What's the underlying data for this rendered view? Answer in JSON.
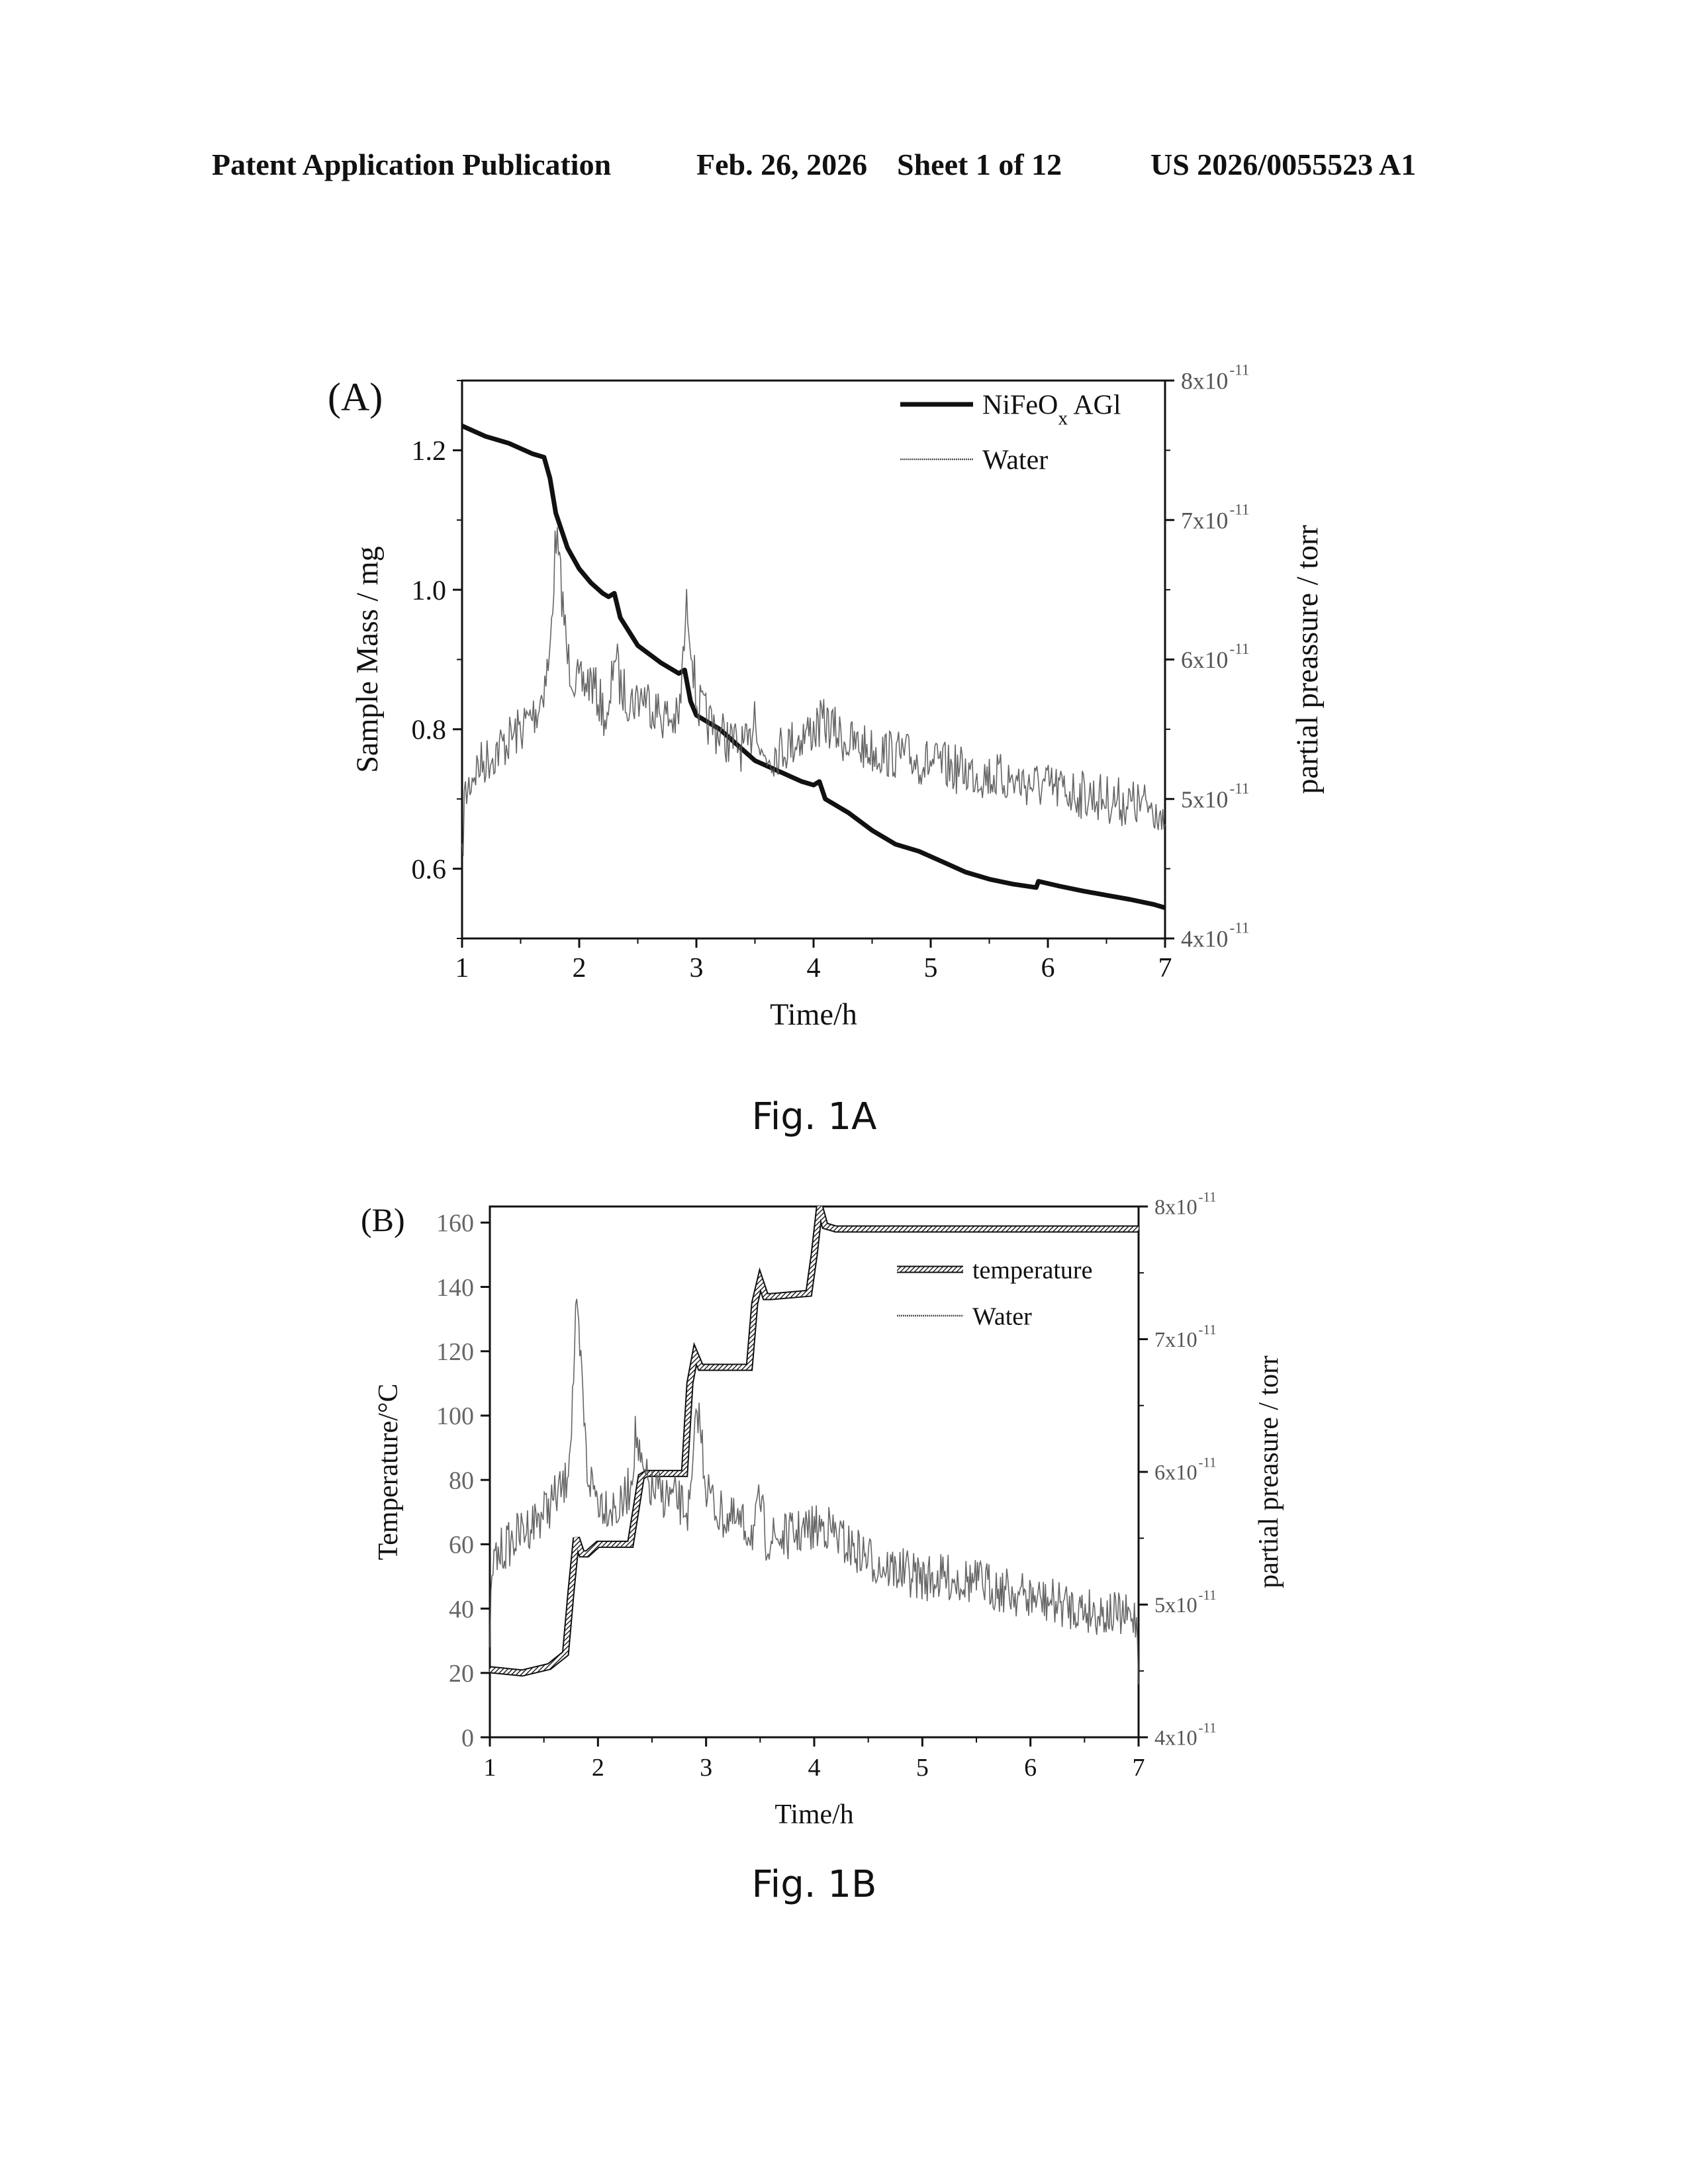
{
  "header": {
    "publication": "Patent Application Publication",
    "date": "Feb. 26, 2026",
    "sheet": "Sheet 1 of 12",
    "number": "US 2026/0055523 A1"
  },
  "figures": {
    "fig_a_caption": "Fig. 1A",
    "fig_b_caption": "Fig. 1B"
  },
  "colors": {
    "ink": "#111111",
    "noise": "#555555"
  },
  "chart_data": [
    {
      "type": "line",
      "panel_label": "(A)",
      "xlabel": "Time/h",
      "ylabel": "Sample Mass / mg",
      "y2label": "partial preassure / torr",
      "xlim": [
        1,
        7
      ],
      "ylim": [
        0.5,
        1.3
      ],
      "y2lim": [
        4e-11,
        8e-11
      ],
      "xticks": [
        "1",
        "2",
        "3",
        "4",
        "5",
        "6",
        "7"
      ],
      "yticks": [
        0.6,
        0.8,
        1.0,
        1.2
      ],
      "ytick_labels": [
        "0.6",
        "0.8",
        "1.0",
        "1.2"
      ],
      "y2ticks": [
        4e-11,
        5e-11,
        6e-11,
        7e-11,
        8e-11
      ],
      "y2tick_labels": [
        "4x10",
        "5x10",
        "6x10",
        "7x10",
        "8x10"
      ],
      "y2tick_exponent": "-11",
      "legend": {
        "position": "top-right",
        "entries": [
          {
            "label": "NiFeO",
            "subscript": "x",
            "suffix": " AGl",
            "style": "thick-solid"
          },
          {
            "label": "Water",
            "style": "noisy"
          }
        ]
      },
      "series": [
        {
          "name": "NiFeOx AGl",
          "axis": "left",
          "x": [
            1.0,
            1.2,
            1.4,
            1.6,
            1.7,
            1.75,
            1.8,
            1.9,
            2.0,
            2.1,
            2.2,
            2.25,
            2.3,
            2.35,
            2.5,
            2.7,
            2.85,
            2.9,
            2.95,
            3.0,
            3.2,
            3.4,
            3.5,
            3.7,
            3.9,
            4.0,
            4.05,
            4.1,
            4.3,
            4.5,
            4.7,
            4.9,
            5.1,
            5.3,
            5.5,
            5.7,
            5.9,
            5.92,
            6.1,
            6.3,
            6.5,
            6.7,
            6.9,
            7.0
          ],
          "y": [
            1.235,
            1.22,
            1.21,
            1.195,
            1.19,
            1.16,
            1.11,
            1.06,
            1.03,
            1.01,
            0.995,
            0.99,
            0.995,
            0.96,
            0.92,
            0.895,
            0.88,
            0.885,
            0.84,
            0.82,
            0.8,
            0.77,
            0.755,
            0.74,
            0.725,
            0.72,
            0.725,
            0.7,
            0.68,
            0.655,
            0.635,
            0.625,
            0.61,
            0.595,
            0.585,
            0.578,
            0.573,
            0.582,
            0.575,
            0.568,
            0.562,
            0.556,
            0.549,
            0.544
          ]
        },
        {
          "name": "Water",
          "axis": "right",
          "x": [
            1.0,
            1.02,
            1.1,
            1.3,
            1.5,
            1.65,
            1.75,
            1.8,
            1.85,
            1.9,
            2.0,
            2.1,
            2.2,
            2.25,
            2.3,
            2.35,
            2.45,
            2.55,
            2.7,
            2.85,
            2.92,
            2.95,
            3.0,
            3.1,
            3.3,
            3.45,
            3.5,
            3.55,
            3.7,
            3.9,
            4.1,
            4.3,
            4.5,
            4.8,
            5.0,
            5.3,
            5.6,
            5.9,
            6.2,
            6.5,
            6.8,
            6.95,
            7.0
          ],
          "y": [
            4.5e-11,
            5e-11,
            5.2e-11,
            5.35e-11,
            5.5e-11,
            5.65e-11,
            6e-11,
            6.9e-11,
            6.5e-11,
            6e-11,
            5.8e-11,
            5.85e-11,
            5.65e-11,
            5.5e-11,
            6.1e-11,
            5.8e-11,
            5.7e-11,
            5.75e-11,
            5.6e-11,
            5.55e-11,
            6.4e-11,
            6.2e-11,
            5.7e-11,
            5.55e-11,
            5.4e-11,
            5.35e-11,
            5.7e-11,
            5.3e-11,
            5.35e-11,
            5.45e-11,
            5.55e-11,
            5.4e-11,
            5.35e-11,
            5.3e-11,
            5.25e-11,
            5.2e-11,
            5.15e-11,
            5.1e-11,
            5.05e-11,
            5e-11,
            4.95e-11,
            4.95e-11,
            4.65e-11
          ]
        }
      ]
    },
    {
      "type": "line",
      "panel_label": "(B)",
      "xlabel": "Time/h",
      "ylabel": "Temperature/°C",
      "y2label": "partial preasure / torr",
      "xlim": [
        1,
        7
      ],
      "ylim": [
        0,
        165
      ],
      "y2lim": [
        4e-11,
        8e-11
      ],
      "xticks": [
        "1",
        "2",
        "3",
        "4",
        "5",
        "6",
        "7"
      ],
      "yticks": [
        0,
        20,
        40,
        60,
        80,
        100,
        120,
        140,
        160
      ],
      "ytick_labels": [
        "0",
        "20",
        "40",
        "60",
        "80",
        "100",
        "120",
        "140",
        "160"
      ],
      "y2ticks": [
        4e-11,
        5e-11,
        6e-11,
        7e-11,
        8e-11
      ],
      "y2tick_labels": [
        "4x10",
        "5x10",
        "6x10",
        "7x10",
        "8x10"
      ],
      "y2tick_exponent": "-11",
      "legend": {
        "position": "top-right",
        "entries": [
          {
            "label": "temperature",
            "style": "thick-hatched"
          },
          {
            "label": "Water",
            "style": "noisy"
          }
        ]
      },
      "series": [
        {
          "name": "temperature",
          "axis": "left",
          "x": [
            1.0,
            1.3,
            1.55,
            1.7,
            1.75,
            1.8,
            1.85,
            1.9,
            2.0,
            2.3,
            2.4,
            2.45,
            2.5,
            2.8,
            2.85,
            2.9,
            2.95,
            3.05,
            3.4,
            3.45,
            3.5,
            3.55,
            3.6,
            3.95,
            4.0,
            4.05,
            4.1,
            4.2,
            5.0,
            6.0,
            7.0
          ],
          "y": [
            21,
            20,
            22,
            26,
            45,
            62,
            57,
            57,
            60,
            60,
            81,
            82,
            82,
            82,
            110,
            119,
            115,
            115,
            115,
            135,
            142,
            137,
            137,
            138,
            150,
            165,
            159,
            158,
            158,
            158,
            158
          ]
        },
        {
          "name": "Water",
          "axis": "right",
          "x": [
            1.0,
            1.03,
            1.1,
            1.3,
            1.5,
            1.7,
            1.75,
            1.8,
            1.85,
            1.9,
            2.0,
            2.2,
            2.3,
            2.35,
            2.4,
            2.5,
            2.7,
            2.85,
            2.92,
            2.95,
            3.0,
            3.1,
            3.3,
            3.45,
            3.5,
            3.55,
            3.7,
            3.9,
            4.1,
            4.3,
            4.6,
            5.0,
            5.3,
            5.6,
            6.0,
            6.3,
            6.6,
            6.9,
            6.98,
            7.0
          ],
          "y": [
            4.8e-11,
            5.3e-11,
            5.4e-11,
            5.55e-11,
            5.7e-11,
            5.9e-11,
            6.3e-11,
            7.2e-11,
            6.7e-11,
            6e-11,
            5.8e-11,
            5.7e-11,
            5.9e-11,
            6.3e-11,
            6e-11,
            5.85e-11,
            5.8e-11,
            5.7e-11,
            6.5e-11,
            6.3e-11,
            5.9e-11,
            5.7e-11,
            5.6e-11,
            5.55e-11,
            5.8e-11,
            5.5e-11,
            5.5e-11,
            5.55e-11,
            5.6e-11,
            5.45e-11,
            5.3e-11,
            5.2e-11,
            5.2e-11,
            5.15e-11,
            5.05e-11,
            5e-11,
            4.95e-11,
            4.9e-11,
            4.9e-11,
            4.55e-11
          ]
        }
      ]
    }
  ]
}
